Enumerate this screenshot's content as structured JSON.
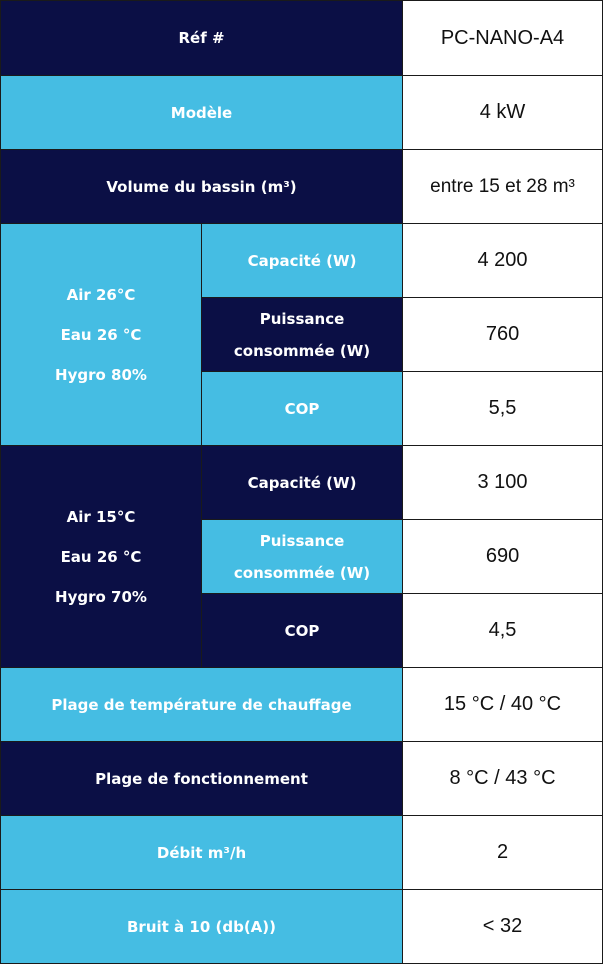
{
  "colors": {
    "dark_header": "#0b0f45",
    "light_header": "#45bde3",
    "value_bg": "#ffffff",
    "border": "#1a1a1a"
  },
  "rows": {
    "ref": {
      "label": "Réf #",
      "value": "PC-NANO-A4"
    },
    "model": {
      "label": "Modèle",
      "value": "4 kW"
    },
    "volume": {
      "label": "Volume du bassin (m³)",
      "value": "entre 15 et 28 m³"
    },
    "cond1": {
      "conditions": [
        "Air 26°C",
        "Eau 26 °C",
        "Hygro 80%"
      ],
      "capacity": {
        "label": "Capacité (W)",
        "value": "4 200"
      },
      "power": {
        "label_line1": "Puissance",
        "label_line2": "consommée (W)",
        "value": "760"
      },
      "cop": {
        "label": "COP",
        "value": "5,5"
      }
    },
    "cond2": {
      "conditions": [
        "Air 15°C",
        "Eau 26 °C",
        "Hygro 70%"
      ],
      "capacity": {
        "label": "Capacité (W)",
        "value": "3 100"
      },
      "power": {
        "label_line1": "Puissance",
        "label_line2": "consommée (W)",
        "value": "690"
      },
      "cop": {
        "label": "COP",
        "value": "4,5"
      }
    },
    "heating_range": {
      "label": "Plage de température de chauffage",
      "value": "15 °C / 40 °C"
    },
    "operating_range": {
      "label": "Plage de fonctionnement",
      "value": "8 °C / 43 °C"
    },
    "flow": {
      "label": "Débit m³/h",
      "value": "2"
    },
    "noise": {
      "label": "Bruit à 10 (db(A))",
      "value": "< 32"
    }
  }
}
